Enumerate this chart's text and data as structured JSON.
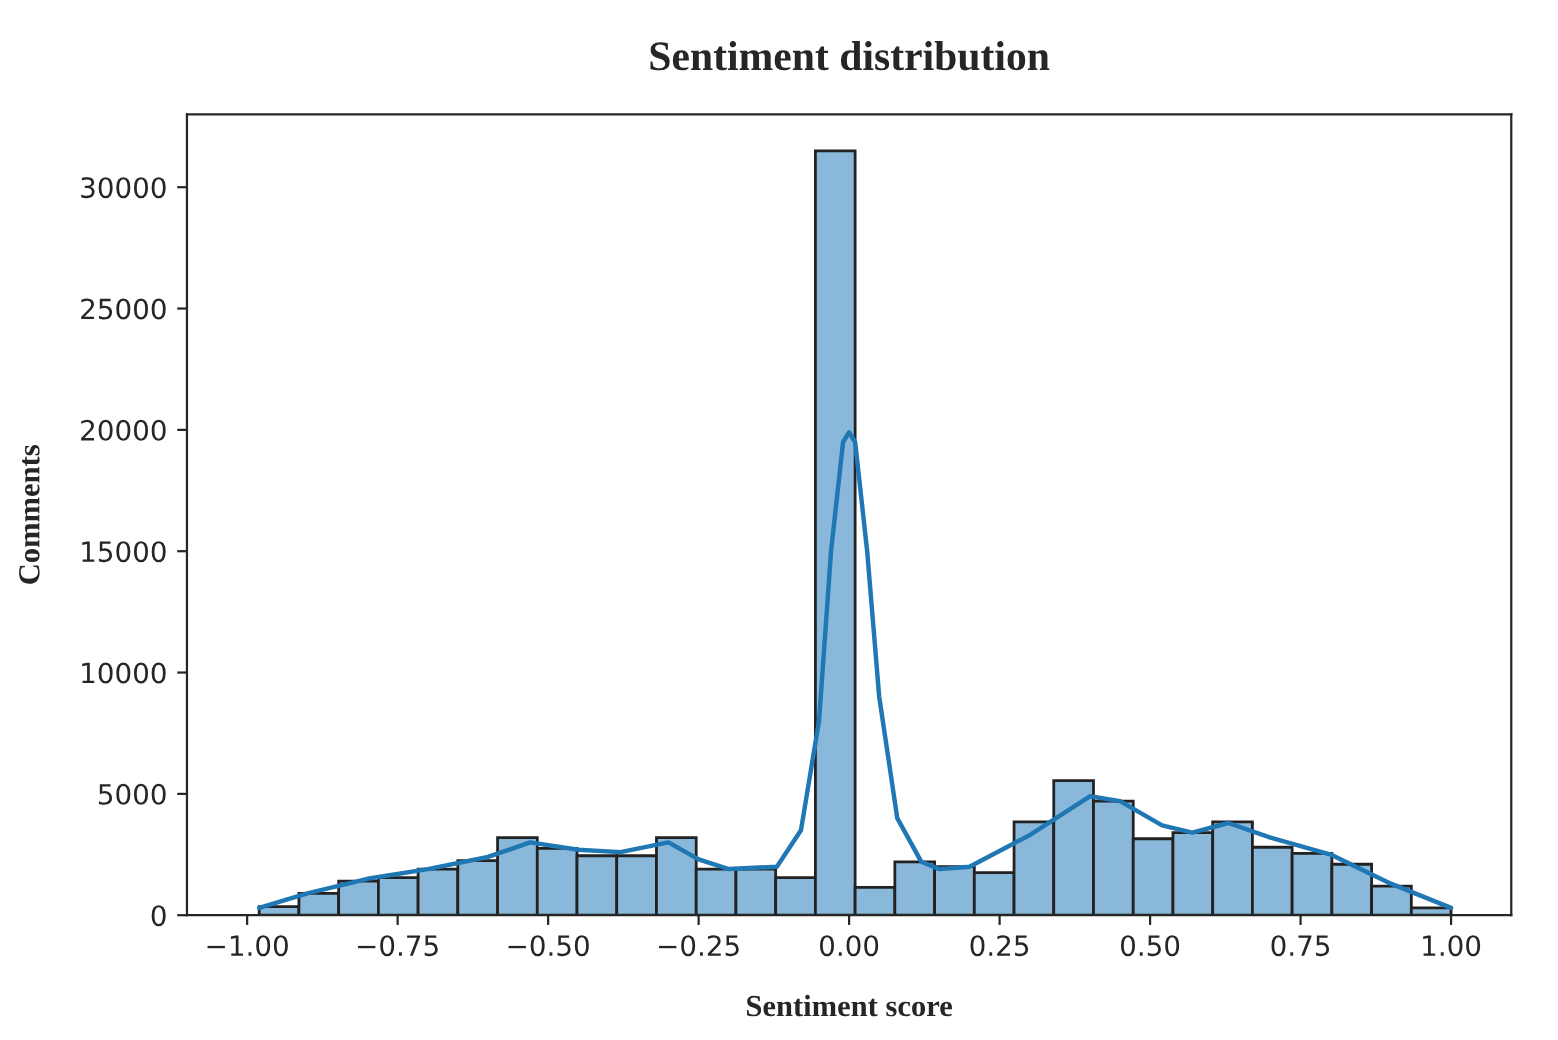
{
  "chart_data": {
    "type": "histogram",
    "title": "Sentiment distribution",
    "xlabel": "Sentiment score",
    "ylabel": "Comments",
    "bins": [
      -0.98,
      -0.914,
      -0.848,
      -0.782,
      -0.716,
      -0.65,
      -0.584,
      -0.518,
      -0.452,
      -0.386,
      -0.32,
      -0.254,
      -0.188,
      -0.122,
      -0.056,
      0.01,
      0.076,
      0.142,
      0.208,
      0.274,
      0.34,
      0.406,
      0.472,
      0.538,
      0.604,
      0.67,
      0.736,
      0.802,
      0.868,
      0.934,
      1.0
    ],
    "values": [
      350,
      900,
      1400,
      1550,
      1900,
      2250,
      3200,
      2750,
      2450,
      2450,
      3200,
      1900,
      1900,
      1550,
      31500,
      1150,
      2200,
      2000,
      1750,
      3850,
      5550,
      4700,
      3150,
      3400,
      3850,
      2800,
      2550,
      2100,
      1200,
      300
    ],
    "color": "#8ab8da",
    "series": [
      {
        "type": "line",
        "color": "#1f77b4",
        "x": [
          -0.98,
          -0.9,
          -0.8,
          -0.7,
          -0.6,
          -0.53,
          -0.45,
          -0.38,
          -0.3,
          -0.25,
          -0.2,
          -0.12,
          -0.08,
          -0.05,
          -0.03,
          -0.01,
          0.0,
          0.01,
          0.03,
          0.05,
          0.08,
          0.12,
          0.15,
          0.2,
          0.3,
          0.4,
          0.45,
          0.52,
          0.57,
          0.63,
          0.7,
          0.8,
          0.9,
          1.0
        ],
        "values": [
          300,
          900,
          1500,
          1900,
          2400,
          3000,
          2700,
          2600,
          3000,
          2300,
          1900,
          2000,
          3500,
          8000,
          15000,
          19500,
          19900,
          19500,
          15000,
          9000,
          4000,
          2200,
          1900,
          2000,
          3300,
          4900,
          4700,
          3700,
          3400,
          3800,
          3200,
          2500,
          1300,
          300
        ]
      }
    ],
    "xlim": [
      -1.1,
      1.1
    ],
    "ylim": [
      0,
      33000
    ],
    "xticks": [
      {
        "value": -1.0,
        "label": "−1.00"
      },
      {
        "value": -0.75,
        "label": "−0.75"
      },
      {
        "value": -0.5,
        "label": "−0.50"
      },
      {
        "value": -0.25,
        "label": "−0.25"
      },
      {
        "value": 0.0,
        "label": "0.00"
      },
      {
        "value": 0.25,
        "label": "0.25"
      },
      {
        "value": 0.5,
        "label": "0.50"
      },
      {
        "value": 0.75,
        "label": "0.75"
      },
      {
        "value": 1.0,
        "label": "1.00"
      }
    ],
    "yticks": [
      0,
      5000,
      10000,
      15000,
      20000,
      25000,
      30000
    ],
    "grid": false,
    "legend": false
  }
}
